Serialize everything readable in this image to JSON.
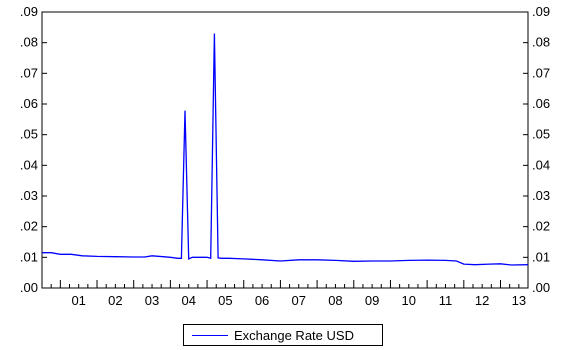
{
  "chart_data": {
    "type": "line",
    "title": "",
    "xlabel": "",
    "ylabel": "",
    "x_range": [
      2000.5,
      2013.75
    ],
    "ylim": [
      0,
      0.09
    ],
    "y_ticks": [
      ".00",
      ".01",
      ".02",
      ".03",
      ".04",
      ".05",
      ".06",
      ".07",
      ".08",
      ".09"
    ],
    "y_tick_values": [
      0,
      0.01,
      0.02,
      0.03,
      0.04,
      0.05,
      0.06,
      0.07,
      0.08,
      0.09
    ],
    "x_ticks": [
      "01",
      "02",
      "03",
      "04",
      "05",
      "06",
      "07",
      "08",
      "09",
      "10",
      "11",
      "12",
      "13"
    ],
    "x_tick_values": [
      2001,
      2002,
      2003,
      2004,
      2005,
      2006,
      2007,
      2008,
      2009,
      2010,
      2011,
      2012,
      2013
    ],
    "dual_y_axis": true,
    "grid": false,
    "legend_position": "bottom-center",
    "series": [
      {
        "name": "Exchange Rate USD",
        "color": "#0000ff",
        "x": [
          2000.5,
          2000.75,
          2001.0,
          2001.3,
          2001.6,
          2002.0,
          2002.5,
          2003.0,
          2003.3,
          2003.5,
          2003.8,
          2004.0,
          2004.2,
          2004.3,
          2004.4,
          2004.5,
          2004.6,
          2004.7,
          2005.0,
          2005.1,
          2005.2,
          2005.3,
          2005.4,
          2005.6,
          2006.0,
          2006.5,
          2007.0,
          2007.5,
          2008.0,
          2008.5,
          2009.0,
          2009.5,
          2010.0,
          2010.5,
          2011.0,
          2011.5,
          2011.8,
          2012.0,
          2012.3,
          2012.7,
          2013.0,
          2013.3,
          2013.75
        ],
        "y": [
          0.0115,
          0.0115,
          0.011,
          0.011,
          0.0105,
          0.0103,
          0.0102,
          0.0101,
          0.0101,
          0.0105,
          0.0102,
          0.01,
          0.0097,
          0.0097,
          0.0578,
          0.0095,
          0.01,
          0.01,
          0.01,
          0.0097,
          0.083,
          0.0098,
          0.0097,
          0.0097,
          0.0095,
          0.0092,
          0.0088,
          0.0092,
          0.0092,
          0.009,
          0.0087,
          0.0088,
          0.0088,
          0.009,
          0.0091,
          0.009,
          0.0088,
          0.0078,
          0.0076,
          0.0078,
          0.0079,
          0.0075,
          0.0076
        ]
      }
    ]
  }
}
